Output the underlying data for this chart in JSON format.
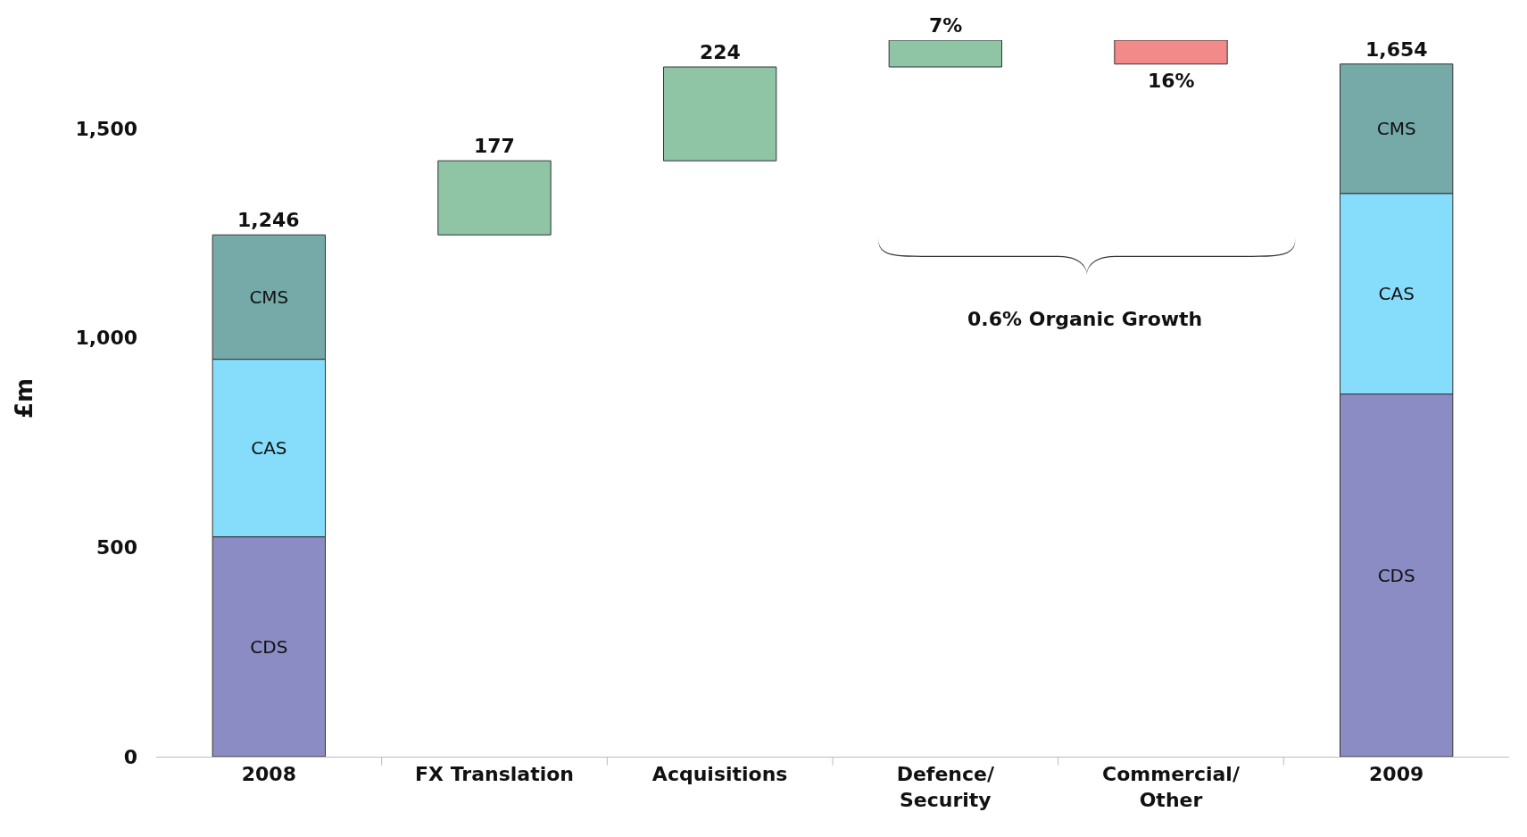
{
  "chart_data": {
    "type": "bar",
    "stacked": true,
    "ylabel": "£m",
    "categories": [
      "2008",
      "FX Translation",
      "Acquisitions",
      "Defence/\nSecurity",
      "Commercial/\nOther",
      "2009"
    ],
    "series": [
      {
        "name": "CDS",
        "color": "#8c8cc4",
        "values": [
          525,
          null,
          null,
          null,
          null,
          866
        ]
      },
      {
        "name": "CAS",
        "color": "#86ddfb",
        "values": [
          424,
          null,
          null,
          null,
          null,
          479
        ]
      },
      {
        "name": "CMS",
        "color": "#75aaa9",
        "values": [
          297,
          null,
          null,
          null,
          null,
          309
        ]
      },
      {
        "colors": [
          "#8fc4a4",
          "#8fc4a4",
          "#8fc4a4",
          "#8fc4a4",
          "#f28a8a",
          "#8fc4a4"
        ],
        "values": [
          null,
          177,
          224,
          64,
          -57,
          null
        ],
        "base": [
          null,
          1246,
          1423,
          1647,
          1711,
          null
        ],
        "value_labels": [
          null,
          "177",
          "224",
          null,
          null,
          null
        ]
      }
    ],
    "totals": [
      "1,246",
      null,
      null,
      null,
      null,
      "1,654"
    ],
    "annotations": [
      "0.6% Organic Growth",
      {
        "text": "7%",
        "x": "Defence/\nSecurity",
        "y": 1711
      },
      {
        "text": "16%",
        "x": "Commercial/\nOther",
        "y": 1654
      }
    ],
    "ylim": [
      0,
      1711
    ],
    "yticks": [
      0,
      500,
      {
        "value": 1000,
        "label": "1,000"
      },
      {
        "value": 1500,
        "label": "1,500"
      }
    ],
    "grid": false,
    "legend": false
  }
}
